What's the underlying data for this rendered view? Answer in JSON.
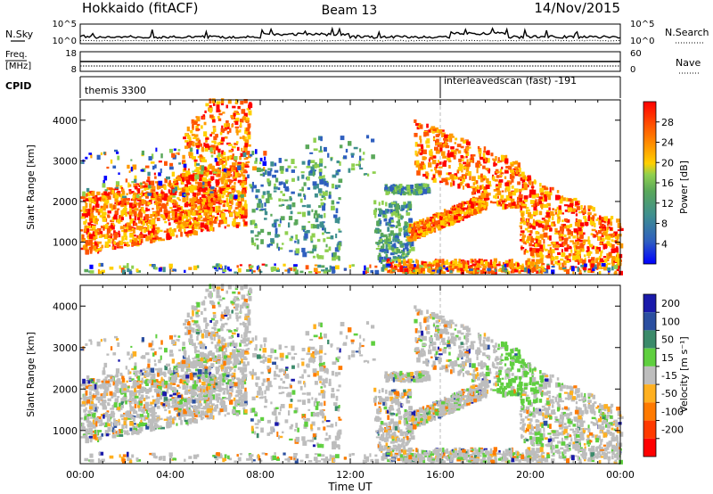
{
  "header": {
    "title": "Hokkaido (fitACF)",
    "beam": "Beam 13",
    "date": "14/Nov/2015"
  },
  "noise_panel": {
    "left_label": "N.Sky",
    "right_label": "N.Search",
    "left_ticks": [
      "10^5",
      "10^0"
    ],
    "right_ticks": [
      "10^5",
      "10^0"
    ]
  },
  "freq_panel": {
    "left_label_1": "Freq.",
    "left_label_2": "[MHz]",
    "left_ticks": [
      "18",
      "8"
    ],
    "right_label": "Nave",
    "right_ticks": [
      "60",
      "0"
    ]
  },
  "cpid_panel": {
    "label": "CPID",
    "mode_1": "themis 3300",
    "mode_2": "interleavedscan (fast) -191",
    "mode_2_start_hour": 16
  },
  "chart_data": [
    {
      "type": "heatmap",
      "name": "power",
      "ylabel": "Slant Range [km]",
      "xlabel": "",
      "yticks": [
        "1000",
        "2000",
        "3000",
        "4000"
      ],
      "ylim": [
        200,
        4500
      ],
      "xlim_hours": [
        0,
        24
      ],
      "colorbar": {
        "label": "Power [dB]",
        "ticks": [
          "4",
          "8",
          "12",
          "16",
          "20",
          "24",
          "28"
        ],
        "range": [
          0,
          32
        ],
        "colors": [
          "#0000ff",
          "#2f5fbf",
          "#3f8f8f",
          "#5aa85a",
          "#8fd04f",
          "#ffd000",
          "#ff9900",
          "#ff5500",
          "#ff0000"
        ]
      }
    },
    {
      "type": "heatmap",
      "name": "velocity",
      "ylabel": "Slant Range [km]",
      "xlabel": "Time UT",
      "xticks": [
        "00:00",
        "04:00",
        "08:00",
        "12:00",
        "16:00",
        "20:00",
        "00:00"
      ],
      "yticks": [
        "1000",
        "2000",
        "3000",
        "4000"
      ],
      "ylim": [
        200,
        4500
      ],
      "xlim_hours": [
        0,
        24
      ],
      "colorbar": {
        "label": "Velocity [m s⁻¹]",
        "ticks": [
          "200",
          "100",
          "50",
          "15",
          "-15",
          "-50",
          "-100",
          "-200"
        ],
        "colors": [
          "#1a1aaa",
          "#2b4fa0",
          "#3b8a6a",
          "#5fcf3f",
          "#bdbdbd",
          "#ffb020",
          "#ff7a00",
          "#ff3a00",
          "#ff0000"
        ]
      }
    }
  ]
}
